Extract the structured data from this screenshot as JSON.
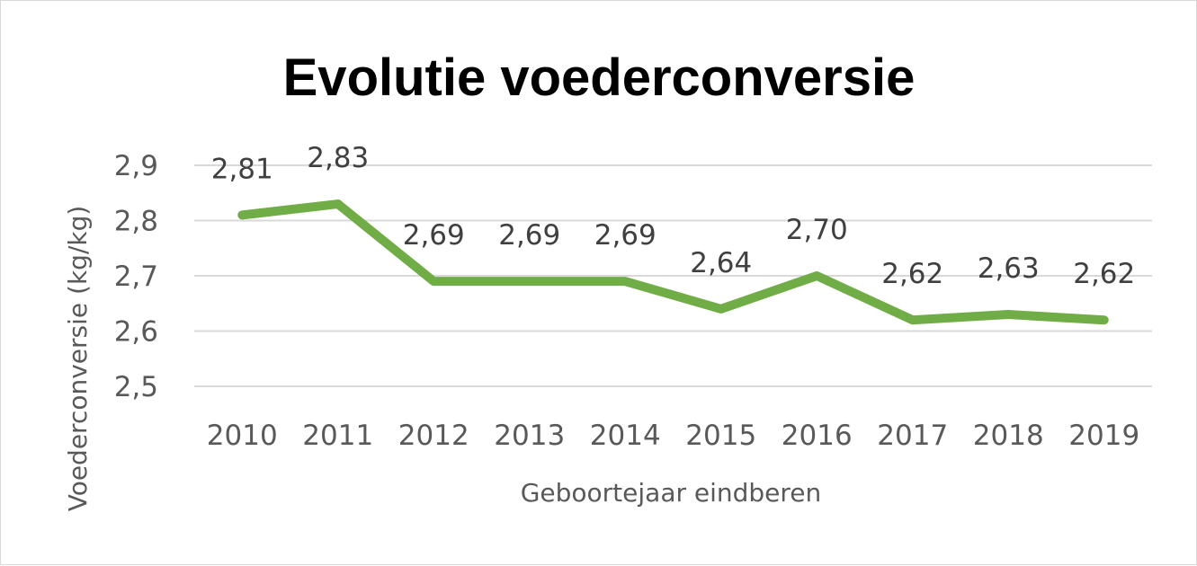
{
  "chart_data": {
    "type": "line",
    "title": "Evolutie voederconversie",
    "xlabel": "Geboortejaar eindberen",
    "ylabel": "Voederconversie (kg/kg)",
    "categories": [
      "2010",
      "2011",
      "2012",
      "2013",
      "2014",
      "2015",
      "2016",
      "2017",
      "2018",
      "2019"
    ],
    "series": [
      {
        "values": [
          2.81,
          2.83,
          2.69,
          2.69,
          2.69,
          2.64,
          2.7,
          2.62,
          2.63,
          2.62
        ]
      }
    ],
    "data_labels": [
      "2,81",
      "2,83",
      "2,69",
      "2,69",
      "2,69",
      "2,64",
      "2,70",
      "2,62",
      "2,63",
      "2,62"
    ],
    "y_ticks": [
      2.5,
      2.6,
      2.7,
      2.8,
      2.9
    ],
    "y_tick_labels": [
      "2,5",
      "2,6",
      "2,7",
      "2,8",
      "2,9"
    ],
    "ylim": [
      2.5,
      2.9
    ],
    "grid": true,
    "legend": "none",
    "colors": {
      "line": "#70ad47",
      "grid": "#d9d9d9",
      "axis_text": "#595959"
    }
  }
}
